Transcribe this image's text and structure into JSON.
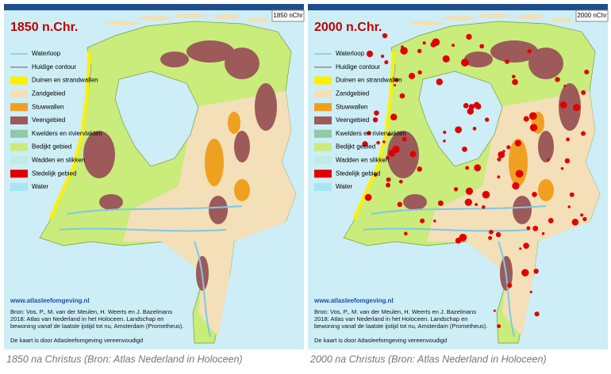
{
  "panels": [
    {
      "title": "1850 n.Chr.",
      "corner_label": "1850 nChr",
      "legend": [
        {
          "label": "Waterloop",
          "color": "#7fc8e8"
        },
        {
          "label": "Huidige contour",
          "color": "#8a8a8a"
        },
        {
          "label": "Duinen en strandwallen",
          "color": "#ffef00"
        },
        {
          "label": "Zandgebied",
          "color": "#f3dfb8"
        },
        {
          "label": "Stuwwallen",
          "color": "#f0a020"
        },
        {
          "label": "Veengebied",
          "color": "#9c5a5a"
        },
        {
          "label": "Kwelders en riviervlakten",
          "color": "#8fc9a8"
        },
        {
          "label": "Bedijkt gebied",
          "color": "#c9ec7a"
        },
        {
          "label": "Wadden en slikken",
          "color": "#c2ece0"
        },
        {
          "label": "Stedelijk gebied",
          "color": "#e00000"
        },
        {
          "label": "Water",
          "color": "#a8e4f4"
        }
      ],
      "website": "www.atlasleefomgeving.nl",
      "source": [
        "Bron: Vos, P., M. van der Meulen, H. Weerts en J. Bazelmans",
        "2018: Atlas van Nederland in het Holoceen. Landschap en",
        "bewoning vanaf de laatste ijstijd tot nu, Amsterdam (Prometheus)."
      ],
      "note": "De kaart is door Atlasleefomgeving vereenvoudigd",
      "caption": "1850 na Christus (Bron: Atlas Nederland in Holoceen)"
    },
    {
      "title": "2000 n.Chr.",
      "corner_label": "2000 nChr",
      "legend": [
        {
          "label": "Waterloop",
          "color": "#7fc8e8"
        },
        {
          "label": "Huidige contour",
          "color": "#8a8a8a"
        },
        {
          "label": "Duinen en strandwallen",
          "color": "#ffef00"
        },
        {
          "label": "Zandgebied",
          "color": "#f3dfb8"
        },
        {
          "label": "Stuwwallen",
          "color": "#f0a020"
        },
        {
          "label": "Veengebied",
          "color": "#9c5a5a"
        },
        {
          "label": "Kwelders en rivierviakten",
          "color": "#8fc9a8"
        },
        {
          "label": "Bedijkt gebied",
          "color": "#c9ec7a"
        },
        {
          "label": "Wadden en slikken",
          "color": "#c2ece0"
        },
        {
          "label": "Stedelijk gebied",
          "color": "#e00000"
        },
        {
          "label": "Water",
          "color": "#a8e4f4"
        }
      ],
      "website": "www.atlasleefomgeving.nl",
      "source": [
        "Bron: Vos, P., M. van der Meulen, H. Weerts en J. Bazelmans",
        "2018: Atlas van Nederland in het Holoceen. Landschap en",
        "bewoning vanaf de laatste ijstijd tot nu, Amsterdam (Prometheus)."
      ],
      "note": "De kaart is door Atlasleefomgeving vereenvoudigd",
      "caption": "2000 na Christus (Bron: Atlas Nederland in Holoceen)"
    }
  ]
}
